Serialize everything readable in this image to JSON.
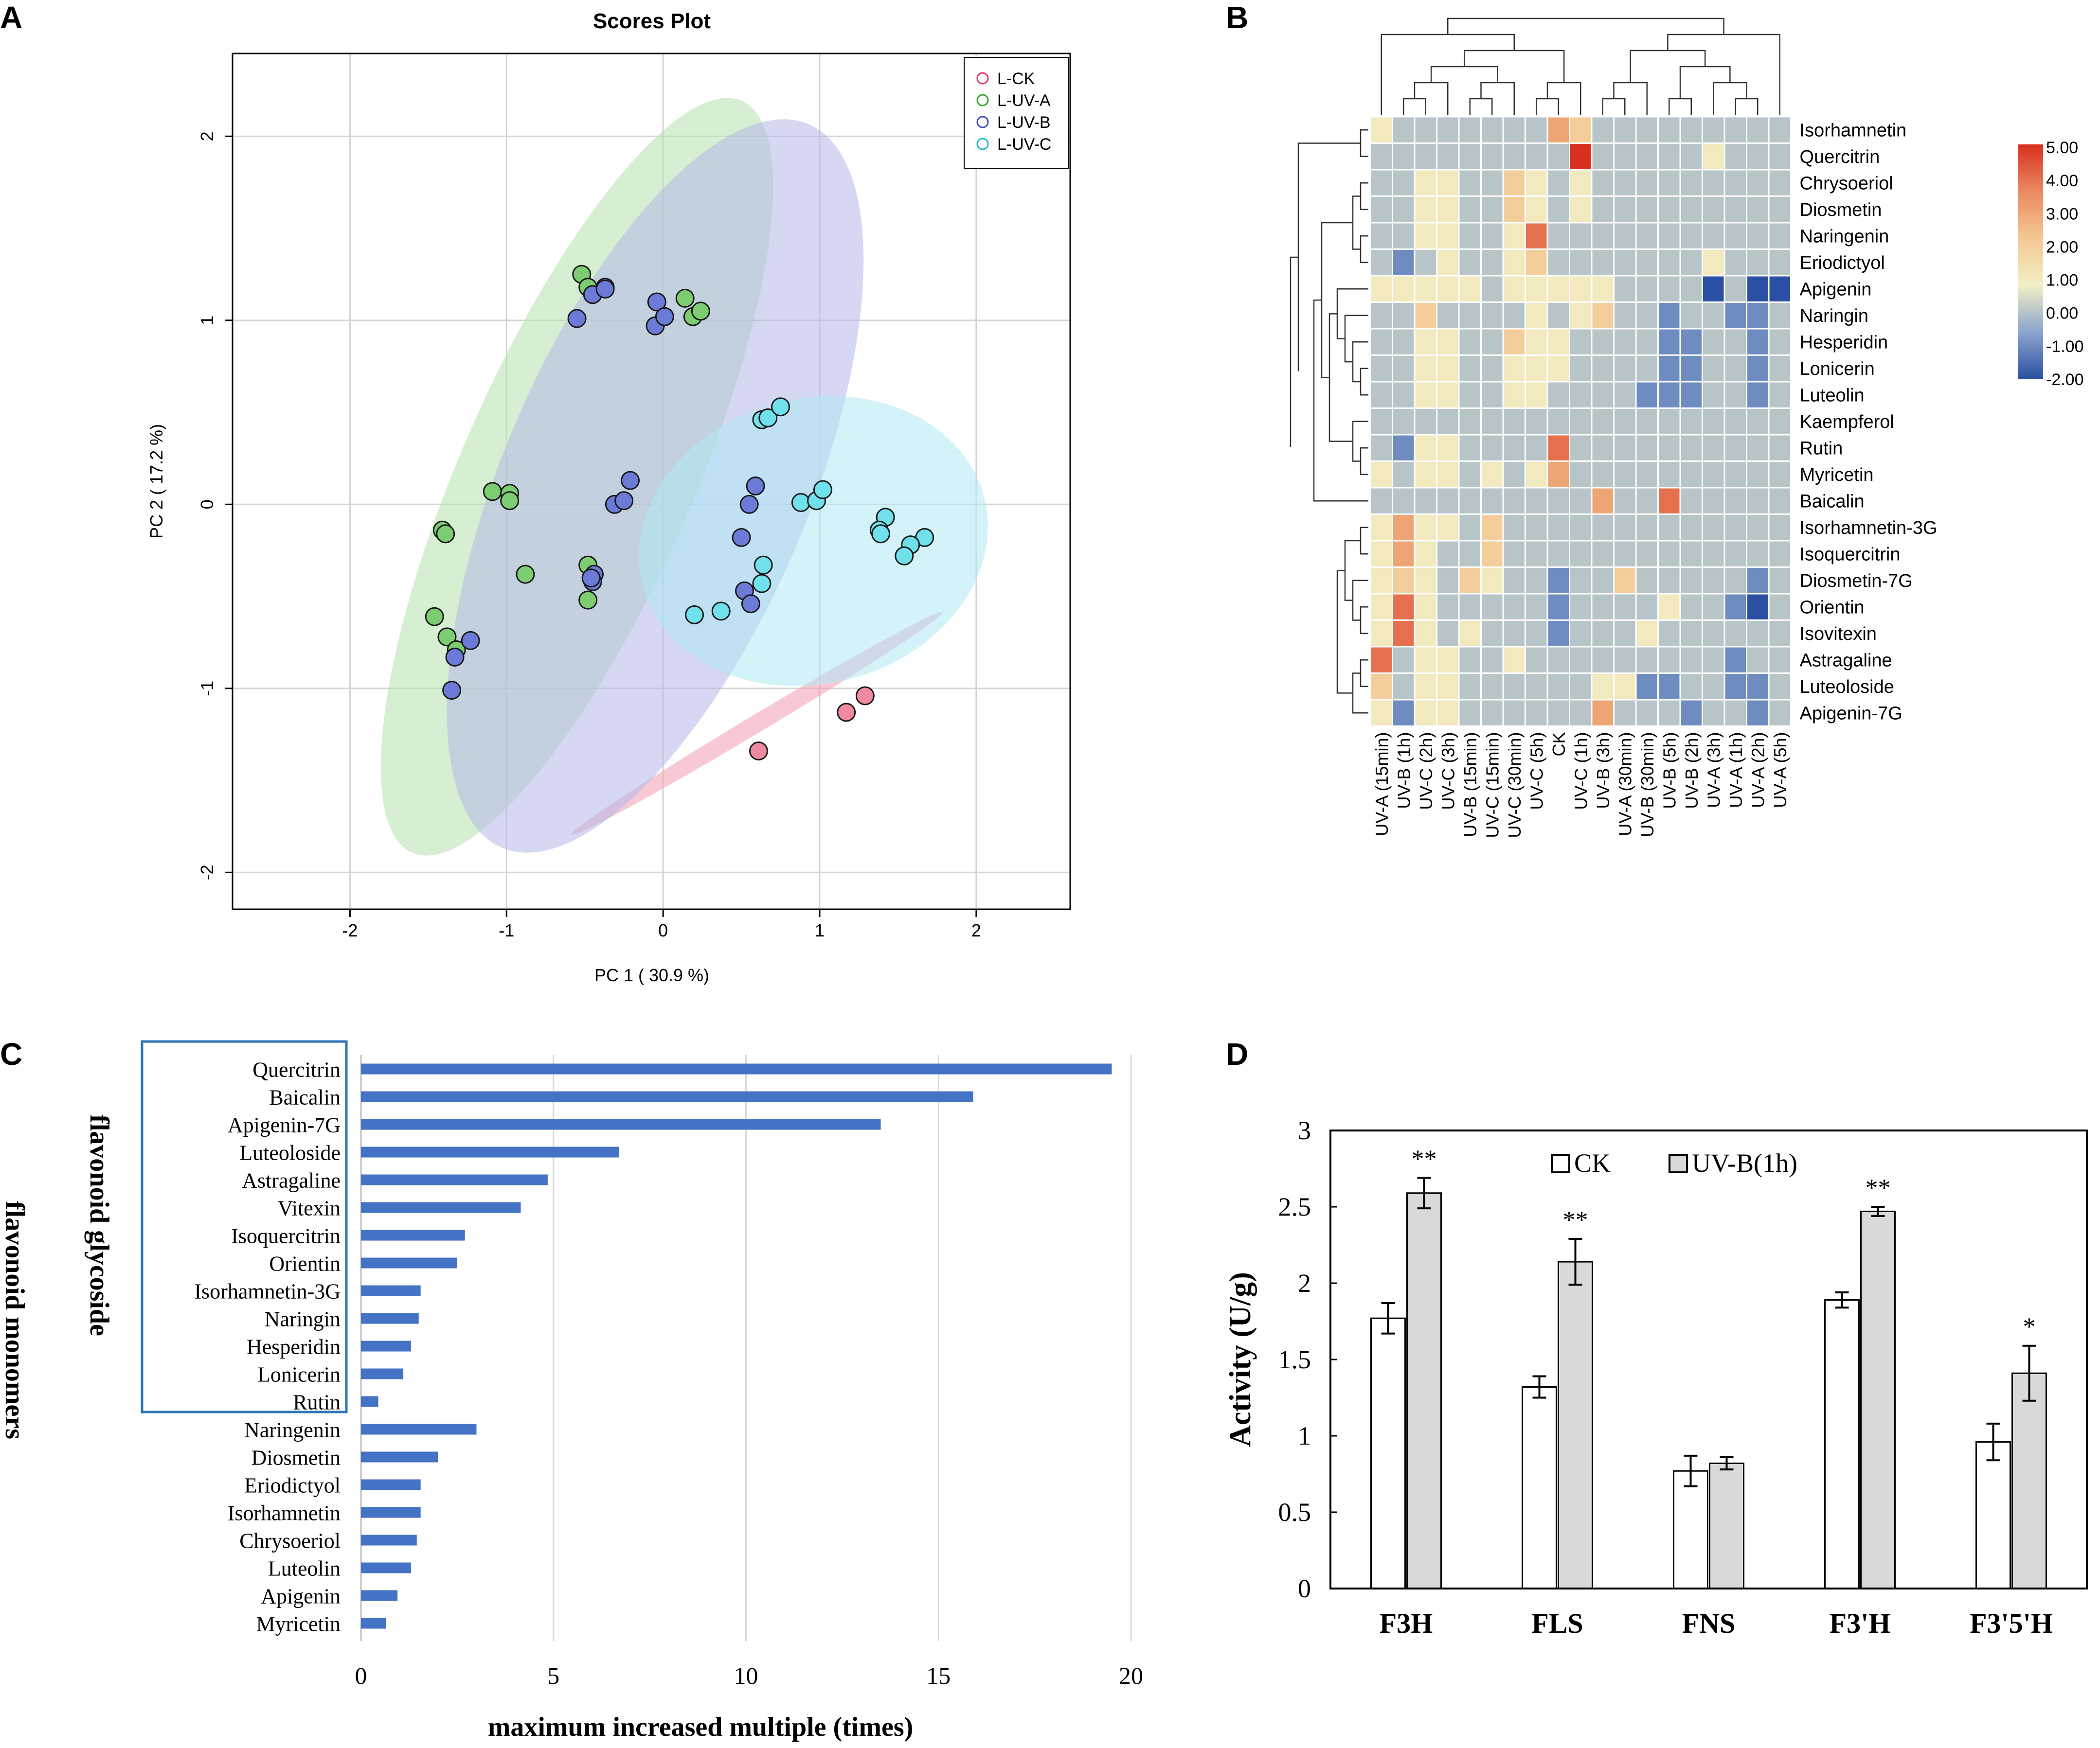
{
  "chart_data": [
    {
      "id": "A",
      "panel_label": "A",
      "type": "scatter",
      "title": "Scores Plot",
      "xlabel": "PC 1 ( 30.9 %)",
      "ylabel": "PC 2 ( 17.2 %)",
      "xlim": [
        -2.75,
        2.6
      ],
      "ylim": [
        -2.2,
        2.45
      ],
      "xticks": [
        -2,
        -1,
        0,
        1,
        2
      ],
      "yticks": [
        -2,
        -1,
        0,
        1,
        2
      ],
      "grid": true,
      "legend": "top-right",
      "series": [
        {
          "name": "L-CK",
          "color": "#e8336b",
          "fill": "#f08aa0",
          "ellipse": {
            "cx": 0.6,
            "cy": -1.19,
            "rx": 1.33,
            "ry": 0.05,
            "angle_deg": 27,
            "color": "#f29ab0"
          },
          "points": [
            [
              0.61,
              -1.34
            ],
            [
              1.17,
              -1.13
            ],
            [
              1.29,
              -1.04
            ]
          ]
        },
        {
          "name": "L-UV-A",
          "color": "#2ea82e",
          "fill": "#7ccc72",
          "ellipse": {
            "cx": -0.55,
            "cy": 0.15,
            "rx": 2.3,
            "ry": 0.72,
            "angle_deg": 62,
            "color": "#b5e0ac"
          },
          "points": [
            [
              -0.52,
              1.25
            ],
            [
              -0.48,
              1.18
            ],
            [
              0.14,
              1.12
            ],
            [
              0.19,
              1.02
            ],
            [
              0.24,
              1.05
            ],
            [
              -1.09,
              0.07
            ],
            [
              -0.98,
              0.06
            ],
            [
              -0.98,
              0.02
            ],
            [
              -1.41,
              -0.14
            ],
            [
              -1.39,
              -0.16
            ],
            [
              -0.88,
              -0.38
            ],
            [
              -0.48,
              -0.33
            ],
            [
              -0.48,
              -0.52
            ],
            [
              -1.46,
              -0.61
            ],
            [
              -1.38,
              -0.72
            ],
            [
              -1.32,
              -0.79
            ]
          ]
        },
        {
          "name": "L-UV-B",
          "color": "#3f4fc4",
          "fill": "#6c7ad8",
          "ellipse": {
            "cx": -0.05,
            "cy": 0.1,
            "rx": 2.2,
            "ry": 0.95,
            "angle_deg": 62,
            "color": "#b4b8ea"
          },
          "points": [
            [
              -0.45,
              1.14
            ],
            [
              -0.37,
              1.18
            ],
            [
              -0.37,
              1.17
            ],
            [
              -0.55,
              1.01
            ],
            [
              -0.04,
              1.1
            ],
            [
              -0.05,
              0.97
            ],
            [
              0.01,
              1.02
            ],
            [
              -0.31,
              0.0
            ],
            [
              -0.25,
              0.02
            ],
            [
              -0.21,
              0.13
            ],
            [
              -0.44,
              -0.38
            ],
            [
              -0.45,
              -0.42
            ],
            [
              -0.46,
              -0.4
            ],
            [
              0.55,
              0.0
            ],
            [
              0.59,
              0.1
            ],
            [
              0.5,
              -0.18
            ],
            [
              0.52,
              -0.47
            ],
            [
              0.56,
              -0.54
            ],
            [
              -1.23,
              -0.74
            ],
            [
              -1.33,
              -0.83
            ],
            [
              -1.35,
              -1.01
            ]
          ]
        },
        {
          "name": "L-UV-C",
          "color": "#1fb8c8",
          "fill": "#6fe0ec",
          "ellipse": {
            "cx": 0.96,
            "cy": -0.2,
            "rx": 1.12,
            "ry": 0.78,
            "angle_deg": 8,
            "color": "#aeeaf4"
          },
          "points": [
            [
              0.63,
              0.46
            ],
            [
              0.67,
              0.47
            ],
            [
              0.75,
              0.53
            ],
            [
              0.88,
              0.01
            ],
            [
              0.98,
              0.02
            ],
            [
              1.02,
              0.08
            ],
            [
              1.42,
              -0.07
            ],
            [
              1.38,
              -0.14
            ],
            [
              1.39,
              -0.16
            ],
            [
              1.67,
              -0.18
            ],
            [
              1.58,
              -0.22
            ],
            [
              1.54,
              -0.28
            ],
            [
              0.64,
              -0.33
            ],
            [
              0.63,
              -0.43
            ],
            [
              0.2,
              -0.6
            ],
            [
              0.37,
              -0.58
            ]
          ]
        }
      ]
    },
    {
      "id": "B",
      "panel_label": "B",
      "type": "heatmap",
      "rows": [
        "Isorhamnetin",
        "Quercitrin",
        "Chrysoeriol",
        "Diosmetin",
        "Naringenin",
        "Eriodictyol",
        "Apigenin",
        "Naringin",
        "Hesperidin",
        "Lonicerin",
        "Luteolin",
        "Kaempferol",
        "Rutin",
        "Myricetin",
        "Baicalin",
        "Isorhamnetin-3G",
        "Isoquercitrin",
        "Diosmetin-7G",
        "Orientin",
        "Isovitexin",
        "Astragaline",
        "Luteoloside",
        "Apigenin-7G"
      ],
      "columns": [
        "UV-A (15min)",
        "UV-B (1h)",
        "UV-C (2h)",
        "UV-C (3h)",
        "UV-B (15min)",
        "UV-C (15min)",
        "UV-C (30min)",
        "UV-C (5h)",
        "CK",
        "UV-C (1h)",
        "UV-B (3h)",
        "UV-A (30min)",
        "UV-B (30min)",
        "UV-B (5h)",
        "UV-B (2h)",
        "UV-A (3h)",
        "UV-A (1h)",
        "UV-A (2h)",
        "UV-A (5h)"
      ],
      "values": [
        [
          1,
          0,
          0,
          0,
          0,
          0,
          0,
          0,
          3,
          2,
          0,
          0,
          0,
          0,
          0,
          0,
          0,
          0,
          0
        ],
        [
          0,
          0,
          0,
          0,
          0,
          0,
          0,
          0,
          0,
          5,
          0,
          0,
          0,
          0,
          0,
          1,
          0,
          0,
          0
        ],
        [
          0,
          0,
          1,
          1,
          0,
          0,
          2,
          1,
          0,
          1,
          0,
          0,
          0,
          0,
          0,
          0,
          0,
          0,
          0
        ],
        [
          0,
          0,
          1,
          1,
          0,
          0,
          2,
          1,
          0,
          1,
          0,
          0,
          0,
          0,
          0,
          0,
          0,
          0,
          0
        ],
        [
          0,
          0,
          1,
          1,
          0,
          0,
          1,
          4,
          0,
          0,
          0,
          0,
          0,
          0,
          0,
          0,
          0,
          0,
          0
        ],
        [
          0,
          -1,
          0,
          1,
          0,
          0,
          1,
          2,
          0,
          0,
          0,
          0,
          0,
          0,
          0,
          1,
          0,
          0,
          0
        ],
        [
          1,
          1,
          1,
          1,
          1,
          0,
          1,
          1,
          1,
          1,
          1,
          0,
          0,
          0,
          0,
          -2,
          0,
          -2,
          -2
        ],
        [
          0,
          0,
          2,
          0,
          0,
          0,
          0,
          1,
          0,
          1,
          2,
          0,
          0,
          -1,
          0,
          0,
          -1,
          -1,
          0
        ],
        [
          0,
          0,
          1,
          1,
          0,
          0,
          2,
          1,
          1,
          0,
          0,
          0,
          0,
          -1,
          -1,
          0,
          0,
          -1,
          0
        ],
        [
          0,
          0,
          1,
          1,
          0,
          0,
          1,
          1,
          1,
          0,
          0,
          0,
          0,
          -1,
          -1,
          0,
          0,
          -1,
          0
        ],
        [
          0,
          0,
          1,
          1,
          0,
          0,
          1,
          1,
          0,
          0,
          0,
          0,
          -1,
          -1,
          -1,
          0,
          0,
          -1,
          0
        ],
        [
          0,
          0,
          0,
          0,
          0,
          0,
          0,
          0,
          0,
          0,
          0,
          0,
          0,
          0,
          0,
          0,
          0,
          0,
          0
        ],
        [
          0,
          -1,
          1,
          1,
          0,
          0,
          0,
          0,
          4,
          0,
          0,
          0,
          0,
          0,
          0,
          0,
          0,
          0,
          0
        ],
        [
          1,
          0,
          1,
          1,
          0,
          1,
          0,
          1,
          3,
          0,
          0,
          0,
          0,
          0,
          0,
          0,
          0,
          0,
          0
        ],
        [
          0,
          0,
          0,
          0,
          0,
          0,
          0,
          0,
          0,
          0,
          3,
          0,
          0,
          4,
          0,
          0,
          0,
          0,
          0
        ],
        [
          1,
          3,
          1,
          1,
          0,
          2,
          0,
          0,
          0,
          0,
          0,
          0,
          0,
          0,
          0,
          0,
          0,
          0,
          0
        ],
        [
          1,
          3,
          1,
          0,
          0,
          2,
          0,
          0,
          0,
          0,
          0,
          0,
          0,
          0,
          0,
          0,
          0,
          0,
          0
        ],
        [
          1,
          2,
          1,
          0,
          2,
          1,
          0,
          0,
          -1,
          0,
          0,
          2,
          0,
          0,
          0,
          0,
          0,
          -1,
          0
        ],
        [
          1,
          4,
          1,
          0,
          0,
          0,
          0,
          0,
          -1,
          0,
          0,
          0,
          0,
          1,
          0,
          0,
          -1,
          -2,
          0
        ],
        [
          1,
          4,
          1,
          0,
          1,
          0,
          0,
          0,
          -1,
          0,
          0,
          0,
          1,
          0,
          0,
          0,
          0,
          0,
          0
        ],
        [
          4,
          0,
          1,
          1,
          0,
          0,
          1,
          0,
          0,
          0,
          0,
          0,
          0,
          0,
          0,
          0,
          -1,
          0,
          0
        ],
        [
          2,
          0,
          1,
          1,
          0,
          0,
          0,
          0,
          0,
          0,
          1,
          1,
          -1,
          -1,
          0,
          0,
          -1,
          -1,
          0
        ],
        [
          1,
          -1,
          1,
          1,
          0,
          0,
          0,
          0,
          0,
          0,
          3,
          0,
          0,
          0,
          -1,
          0,
          0,
          -1,
          0
        ]
      ],
      "color_scale": {
        "min": -2.0,
        "max": 5.0,
        "ticks": [
          "5.00",
          "4.00",
          "3.00",
          "2.00",
          "1.00",
          "0.00",
          "-1.00",
          "-2.00"
        ],
        "colors": [
          "#2b4fa3",
          "#8aa5cc",
          "#f3efc6",
          "#f3c893",
          "#eb8a60",
          "#d7301f"
        ]
      }
    },
    {
      "id": "C",
      "panel_label": "C",
      "type": "bar",
      "orientation": "horizontal",
      "categories": [
        "Quercitrin",
        "Baicalin",
        "Apigenin-7G",
        "Luteoloside",
        "Astragaline",
        "Vitexin",
        "Isoquercitrin",
        "Orientin",
        "Isorhamnetin-3G",
        "Naringin",
        "Hesperidin",
        "Lonicerin",
        "Rutin",
        "Naringenin",
        "Diosmetin",
        "Eriodictyol",
        "Isorhamnetin",
        "Chrysoeriol",
        "Luteolin",
        "Apigenin",
        "Myricetin"
      ],
      "values": [
        19.5,
        15.9,
        13.5,
        6.7,
        4.85,
        4.15,
        2.7,
        2.5,
        1.55,
        1.5,
        1.3,
        1.1,
        0.45,
        3.0,
        2.0,
        1.55,
        1.55,
        1.45,
        1.3,
        0.95,
        0.65
      ],
      "xlim": [
        0,
        20
      ],
      "xticks": [
        0,
        5,
        10,
        15,
        20
      ],
      "xlabel": "maximum increased multiple (times)",
      "group_labels": {
        "glycoside": "flavonoid glycoside",
        "monomers": "flavonoid monomers"
      },
      "color": "#4472c4",
      "box_color": "#2e75b6"
    },
    {
      "id": "D",
      "panel_label": "D",
      "type": "bar",
      "categories": [
        "F3H",
        "FLS",
        "FNS",
        "F3'H",
        "F3'5'H"
      ],
      "series": [
        {
          "name": "CK",
          "values": [
            1.77,
            1.32,
            0.77,
            1.89,
            0.96
          ],
          "errors": [
            0.1,
            0.07,
            0.1,
            0.05,
            0.12
          ],
          "color": "#ffffff"
        },
        {
          "name": "UV-B(1h)",
          "values": [
            2.59,
            2.14,
            0.82,
            2.47,
            1.41
          ],
          "errors": [
            0.1,
            0.15,
            0.04,
            0.03,
            0.18
          ],
          "color": "#d9d9d9"
        }
      ],
      "significance": [
        "**",
        "**",
        "",
        "**",
        "*"
      ],
      "ylim": [
        0,
        3
      ],
      "yticks": [
        "0",
        "0.5",
        "1",
        "1.5",
        "2",
        "2.5",
        "3"
      ],
      "ylabel": "Activity (U/g)",
      "xlabel": ""
    }
  ]
}
